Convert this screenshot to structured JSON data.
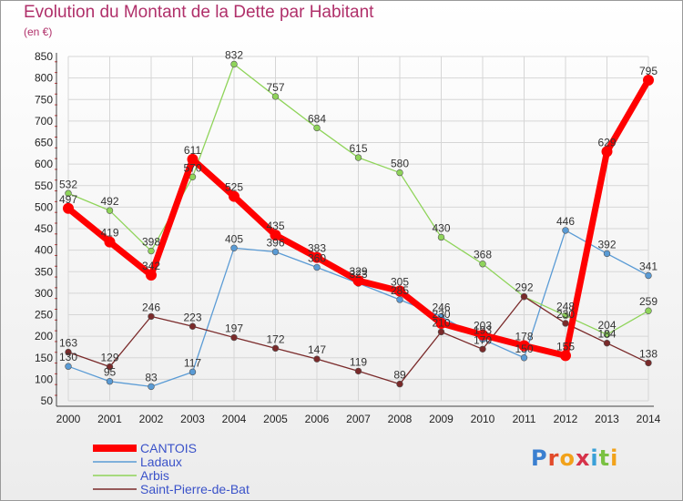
{
  "title": "Evolution du Montant de la Dette par Habitant",
  "unit_label": "(en €)",
  "logo": "Proxiti",
  "chart_data": {
    "type": "line",
    "categories": [
      "2000",
      "2001",
      "2002",
      "2003",
      "2004",
      "2005",
      "2006",
      "2007",
      "2008",
      "2009",
      "2010",
      "2011",
      "2012",
      "2013",
      "2014"
    ],
    "ylim": [
      50,
      850
    ],
    "yticks": [
      50,
      100,
      150,
      200,
      250,
      300,
      350,
      400,
      450,
      500,
      550,
      600,
      650,
      700,
      750,
      800,
      850
    ],
    "grid": true,
    "legend_position": "bottom-left",
    "series": [
      {
        "name": "CANTOIS",
        "color": "#ff0000",
        "values": [
          497,
          419,
          342,
          611,
          525,
          435,
          383,
          329,
          305,
          230,
          203,
          178,
          155,
          629,
          795
        ]
      },
      {
        "name": "Ladaux",
        "color": "#5a9bd5",
        "values": [
          130,
          95,
          83,
          117,
          405,
          396,
          360,
          323,
          285,
          246,
          193,
          150,
          446,
          392,
          341
        ]
      },
      {
        "name": "Arbis",
        "color": "#8fd45a",
        "values": [
          532,
          492,
          398,
          570,
          832,
          757,
          684,
          615,
          580,
          430,
          368,
          292,
          248,
          204,
          259
        ]
      },
      {
        "name": "Saint-Pierre-de-Bat",
        "color": "#7a2a2a",
        "values": [
          163,
          129,
          246,
          223,
          197,
          172,
          147,
          119,
          89,
          210,
          170,
          292,
          230,
          184,
          138
        ]
      }
    ],
    "data_labels": [
      {
        "year": "2000",
        "value": 532,
        "text": "532"
      },
      {
        "year": "2000",
        "value": 497,
        "text": "497"
      },
      {
        "year": "2000",
        "value": 163,
        "text": "163"
      },
      {
        "year": "2000",
        "value": 130,
        "text": "130"
      },
      {
        "year": "2001",
        "value": 492,
        "text": "492"
      },
      {
        "year": "2001",
        "value": 419,
        "text": "419"
      },
      {
        "year": "2001",
        "value": 129,
        "text": "129"
      },
      {
        "year": "2001",
        "value": 95,
        "text": "95"
      },
      {
        "year": "2002",
        "value": 398,
        "text": "398"
      },
      {
        "year": "2002",
        "value": 342,
        "text": "342"
      },
      {
        "year": "2002",
        "value": 246,
        "text": "246"
      },
      {
        "year": "2002",
        "value": 83,
        "text": "83"
      },
      {
        "year": "2003",
        "value": 611,
        "text": "611"
      },
      {
        "year": "2003",
        "value": 570,
        "text": "570"
      },
      {
        "year": "2003",
        "value": 223,
        "text": "223"
      },
      {
        "year": "2003",
        "value": 117,
        "text": "117"
      },
      {
        "year": "2004",
        "value": 832,
        "text": "832"
      },
      {
        "year": "2004",
        "value": 525,
        "text": "525"
      },
      {
        "year": "2004",
        "value": 405,
        "text": "405"
      },
      {
        "year": "2004",
        "value": 197,
        "text": "197"
      },
      {
        "year": "2005",
        "value": 757,
        "text": "757"
      },
      {
        "year": "2005",
        "value": 435,
        "text": "435"
      },
      {
        "year": "2005",
        "value": 396,
        "text": "396"
      },
      {
        "year": "2005",
        "value": 172,
        "text": "172"
      },
      {
        "year": "2006",
        "value": 684,
        "text": "684"
      },
      {
        "year": "2006",
        "value": 383,
        "text": "383"
      },
      {
        "year": "2006",
        "value": 360,
        "text": "360"
      },
      {
        "year": "2006",
        "value": 147,
        "text": "147"
      },
      {
        "year": "2007",
        "value": 615,
        "text": "615"
      },
      {
        "year": "2007",
        "value": 329,
        "text": "329"
      },
      {
        "year": "2007",
        "value": 323,
        "text": "323"
      },
      {
        "year": "2007",
        "value": 119,
        "text": "119"
      },
      {
        "year": "2008",
        "value": 580,
        "text": "580"
      },
      {
        "year": "2008",
        "value": 305,
        "text": "305"
      },
      {
        "year": "2008",
        "value": 285,
        "text": "285"
      },
      {
        "year": "2008",
        "value": 89,
        "text": "89"
      },
      {
        "year": "2009",
        "value": 430,
        "text": "430"
      },
      {
        "year": "2009",
        "value": 246,
        "text": "246"
      },
      {
        "year": "2009",
        "value": 230,
        "text": "230"
      },
      {
        "year": "2009",
        "value": 210,
        "text": "210"
      },
      {
        "year": "2010",
        "value": 368,
        "text": "368"
      },
      {
        "year": "2010",
        "value": 203,
        "text": "203"
      },
      {
        "year": "2010",
        "value": 193,
        "text": "193"
      },
      {
        "year": "2010",
        "value": 170,
        "text": "170"
      },
      {
        "year": "2011",
        "value": 292,
        "text": "292"
      },
      {
        "year": "2011",
        "value": 178,
        "text": "178"
      },
      {
        "year": "2011",
        "value": 150,
        "text": "150"
      },
      {
        "year": "2012",
        "value": 446,
        "text": "446"
      },
      {
        "year": "2012",
        "value": 248,
        "text": "248"
      },
      {
        "year": "2012",
        "value": 230,
        "text": "230"
      },
      {
        "year": "2012",
        "value": 155,
        "text": "155"
      },
      {
        "year": "2013",
        "value": 629,
        "text": "629"
      },
      {
        "year": "2013",
        "value": 392,
        "text": "392"
      },
      {
        "year": "2013",
        "value": 204,
        "text": "204"
      },
      {
        "year": "2013",
        "value": 184,
        "text": "184"
      },
      {
        "year": "2014",
        "value": 795,
        "text": "795"
      },
      {
        "year": "2014",
        "value": 341,
        "text": "341"
      },
      {
        "year": "2014",
        "value": 259,
        "text": "259"
      },
      {
        "year": "2014",
        "value": 138,
        "text": "138"
      }
    ]
  }
}
